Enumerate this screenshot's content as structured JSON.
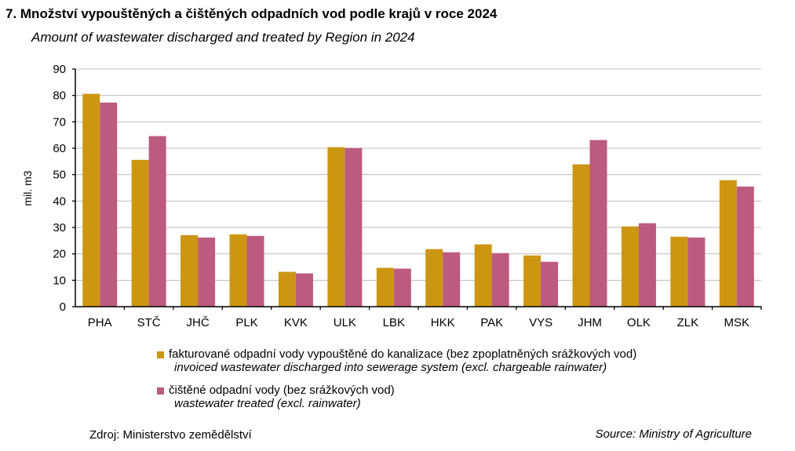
{
  "chart_data": {
    "type": "bar",
    "title": "7. Množství vypouštěných a čištěných odpadních vod podle krajů v roce 2024",
    "subtitle": "Amount of wastewater discharged and treated by Region in 2024",
    "ylabel": "mil. m3",
    "ylim": [
      0,
      90
    ],
    "yticks": [
      0,
      10,
      20,
      30,
      40,
      50,
      60,
      70,
      80,
      90
    ],
    "grid": true,
    "categories": [
      "PHA",
      "STČ",
      "JHČ",
      "PLK",
      "KVK",
      "ULK",
      "LBK",
      "HKK",
      "PAK",
      "VYS",
      "JHM",
      "OLK",
      "ZLK",
      "MSK"
    ],
    "series": [
      {
        "name": "fakturované odpadní vody vypouštěné do kanalizace (bez zpoplatněných srážkových vod)",
        "name_en": "invoiced wastewater discharged into sewerage system (excl. chargeable rainwater)",
        "color": "#CC9612",
        "values": [
          80.6,
          55.6,
          27.1,
          27.4,
          13.2,
          60.4,
          14.7,
          21.8,
          23.6,
          19.4,
          53.9,
          30.4,
          26.5,
          47.9
        ]
      },
      {
        "name": "čištěné odpadní vody (bez srážkových vod)",
        "name_en": "wastewater treated (excl. rainwater)",
        "color": "#BC5B7F",
        "values": [
          77.3,
          64.6,
          26.2,
          26.8,
          12.6,
          60.1,
          14.4,
          20.6,
          20.3,
          17.0,
          63.1,
          31.6,
          26.2,
          45.5
        ]
      }
    ],
    "legend_position": "bottom-left"
  },
  "source_cz": "Zdroj:  Ministerstvo  zemědělství",
  "source_en": "Source: Ministry of Agriculture"
}
